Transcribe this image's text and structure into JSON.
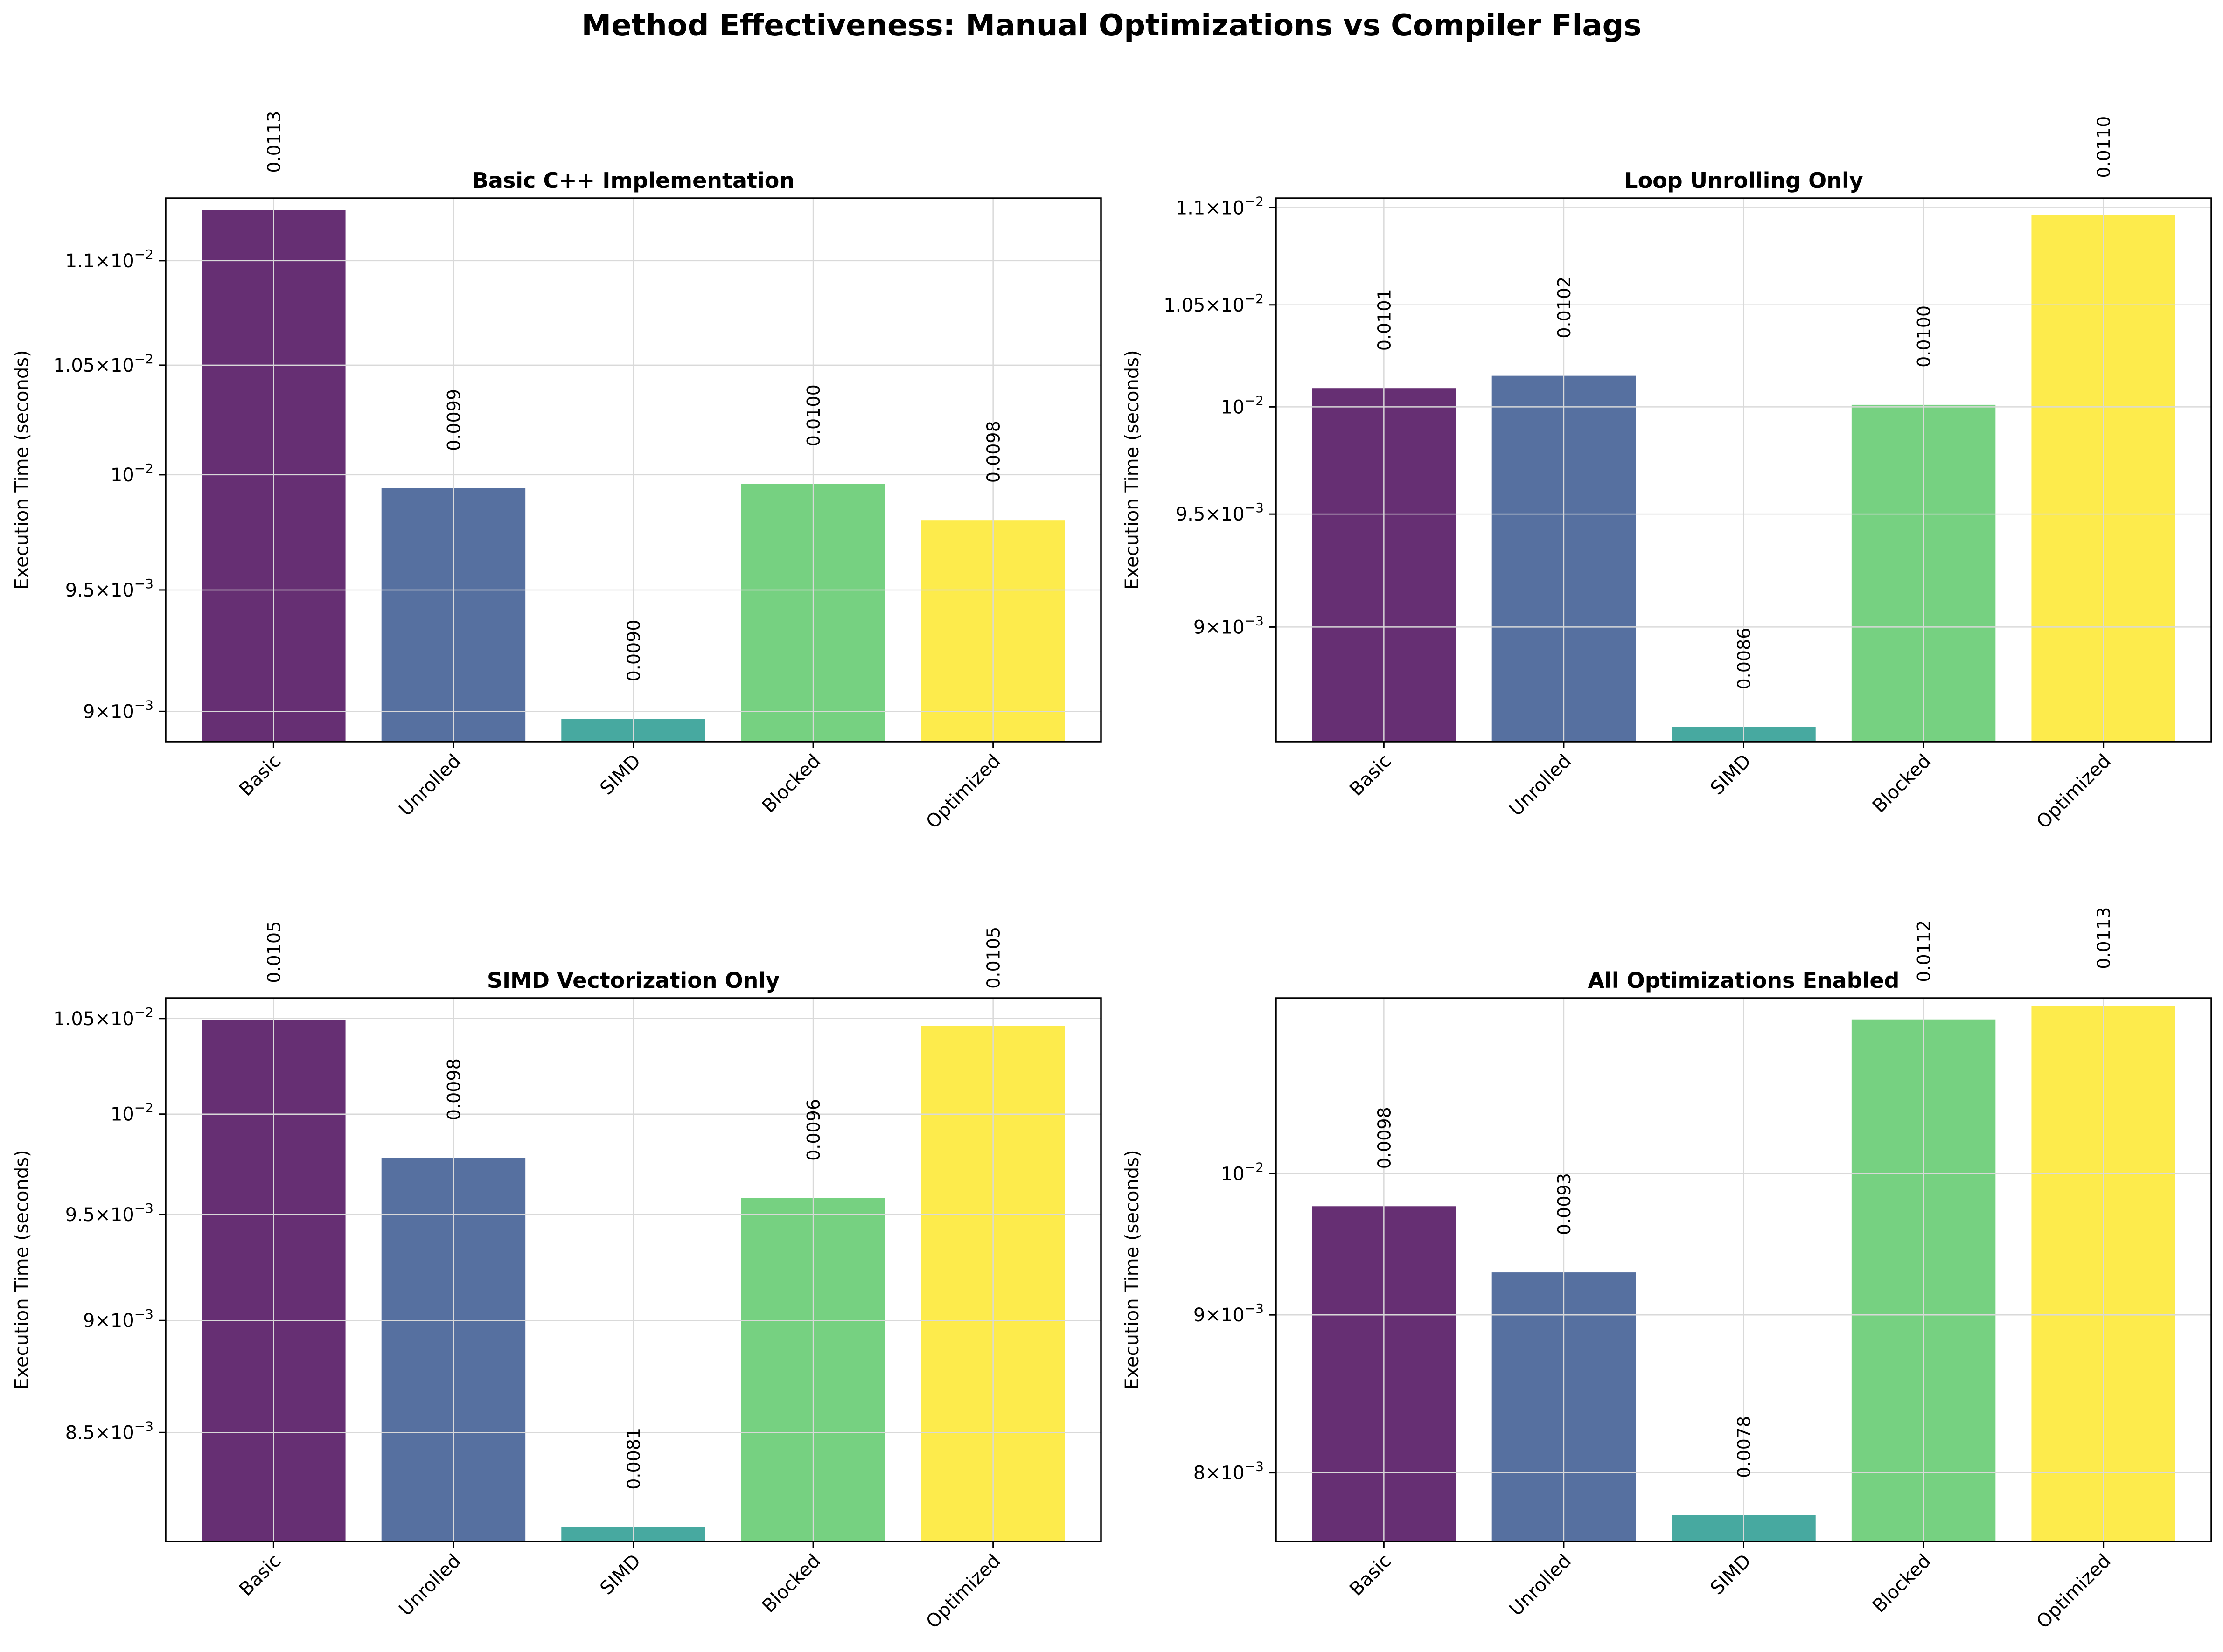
{
  "figure_title": "Method Effectiveness: Manual Optimizations vs Compiler Flags",
  "colors": {
    "Basic": "#440154",
    "Unrolled": "#31508b",
    "SIMD": "#1f968b",
    "Blocked": "#58c765",
    "Optimized": "#fde725",
    "grid": "#d9d9d9",
    "axis": "#000000"
  },
  "chart_data": [
    {
      "type": "bar",
      "title": "Basic C++ Implementation",
      "ylabel": "Execution Time (seconds)",
      "yscale": "log",
      "ylim": [
        0.00888,
        0.01131
      ],
      "categories": [
        "Basic",
        "Unrolled",
        "SIMD",
        "Blocked",
        "Optimized"
      ],
      "values": [
        0.01125,
        0.00994,
        0.00897,
        0.00996,
        0.0098
      ],
      "value_labels": [
        "0.0113",
        "0.0099",
        "0.0090",
        "0.0100",
        "0.0098"
      ],
      "yticks": [
        {
          "value": 0.009,
          "mantissa": "9",
          "exp": "−3"
        },
        {
          "value": 0.0095,
          "mantissa": "9.5",
          "exp": "−3"
        },
        {
          "value": 0.01,
          "mantissa": "",
          "exp": "−2"
        },
        {
          "value": 0.0105,
          "mantissa": "1.05",
          "exp": "−2"
        },
        {
          "value": 0.011,
          "mantissa": "1.1",
          "exp": "−2"
        }
      ],
      "grid": true
    },
    {
      "type": "bar",
      "title": "Loop Unrolling Only",
      "ylabel": "Execution Time (seconds)",
      "yscale": "log",
      "ylim": [
        0.00852,
        0.01105
      ],
      "categories": [
        "Basic",
        "Unrolled",
        "SIMD",
        "Blocked",
        "Optimized"
      ],
      "values": [
        0.01009,
        0.01015,
        0.00858,
        0.01001,
        0.01096
      ],
      "value_labels": [
        "0.0101",
        "0.0102",
        "0.0086",
        "0.0100",
        "0.0110"
      ],
      "yticks": [
        {
          "value": 0.009,
          "mantissa": "9",
          "exp": "−3"
        },
        {
          "value": 0.0095,
          "mantissa": "9.5",
          "exp": "−3"
        },
        {
          "value": 0.01,
          "mantissa": "",
          "exp": "−2"
        },
        {
          "value": 0.0105,
          "mantissa": "1.05",
          "exp": "−2"
        },
        {
          "value": 0.011,
          "mantissa": "1.1",
          "exp": "−2"
        }
      ],
      "grid": true
    },
    {
      "type": "bar",
      "title": "SIMD Vectorization Only",
      "ylabel": "Execution Time (seconds)",
      "yscale": "log",
      "ylim": [
        0.00804,
        0.01061
      ],
      "categories": [
        "Basic",
        "Unrolled",
        "SIMD",
        "Blocked",
        "Optimized"
      ],
      "values": [
        0.01049,
        0.00978,
        0.0081,
        0.00958,
        0.01046
      ],
      "value_labels": [
        "0.0105",
        "0.0098",
        "0.0081",
        "0.0096",
        "0.0105"
      ],
      "yticks": [
        {
          "value": 0.0085,
          "mantissa": "8.5",
          "exp": "−3"
        },
        {
          "value": 0.009,
          "mantissa": "9",
          "exp": "−3"
        },
        {
          "value": 0.0095,
          "mantissa": "9.5",
          "exp": "−3"
        },
        {
          "value": 0.01,
          "mantissa": "",
          "exp": "−2"
        },
        {
          "value": 0.0105,
          "mantissa": "1.05",
          "exp": "−2"
        }
      ],
      "grid": true
    },
    {
      "type": "bar",
      "title": "All Optimizations Enabled",
      "ylabel": "Execution Time (seconds)",
      "yscale": "log",
      "ylim": [
        0.0076,
        0.0114
      ],
      "categories": [
        "Basic",
        "Unrolled",
        "SIMD",
        "Blocked",
        "Optimized"
      ],
      "values": [
        0.00976,
        0.00929,
        0.00775,
        0.01122,
        0.01133
      ],
      "value_labels": [
        "0.0098",
        "0.0093",
        "0.0078",
        "0.0112",
        "0.0113"
      ],
      "yticks": [
        {
          "value": 0.008,
          "mantissa": "8",
          "exp": "−3"
        },
        {
          "value": 0.009,
          "mantissa": "9",
          "exp": "−3"
        },
        {
          "value": 0.01,
          "mantissa": "",
          "exp": "−2"
        }
      ],
      "grid": true
    }
  ]
}
